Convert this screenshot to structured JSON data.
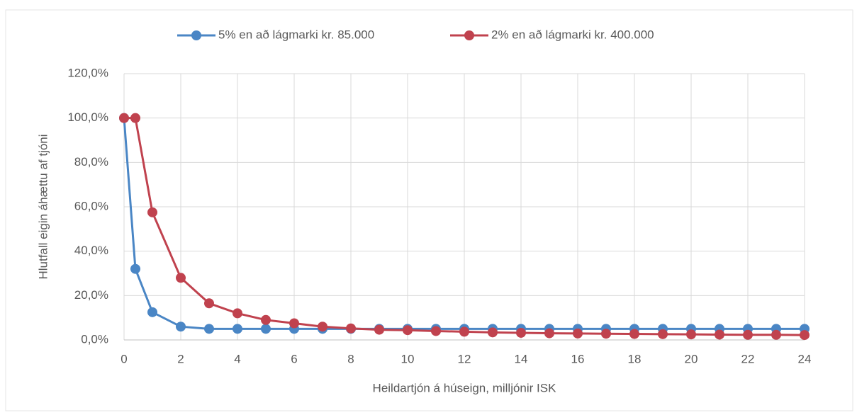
{
  "chart_data": {
    "type": "line",
    "x_label": "Heildartjón á húseign, milljónir ISK",
    "y_label": "Hlutfall eigin áhættu af tjóni",
    "x": [
      0,
      0.4,
      1,
      2,
      3,
      4,
      5,
      6,
      7,
      8,
      9,
      10,
      11,
      12,
      13,
      14,
      15,
      16,
      17,
      18,
      19,
      20,
      21,
      22,
      23,
      24
    ],
    "series": [
      {
        "name": "5% en að lágmarki kr. 85.000",
        "color": "#4a86c5",
        "values": [
          100,
          32,
          12.5,
          6,
          5,
          5,
          5,
          5,
          5,
          5,
          5,
          5,
          5,
          5,
          5,
          5,
          5,
          5,
          5,
          5,
          5,
          5,
          5,
          5,
          5,
          5
        ]
      },
      {
        "name": "2% en að lágmarki kr. 400.000",
        "color": "#c0424e",
        "values": [
          100,
          100,
          57.5,
          28,
          16.5,
          12,
          9,
          7.5,
          6,
          5.2,
          4.6,
          4.4,
          4.0,
          3.7,
          3.4,
          3.2,
          3.0,
          2.9,
          2.8,
          2.7,
          2.6,
          2.5,
          2.4,
          2.3,
          2.3,
          2.2
        ]
      }
    ],
    "xlim": [
      0,
      24
    ],
    "xticks": [
      0,
      2,
      4,
      6,
      8,
      10,
      12,
      14,
      16,
      18,
      20,
      22,
      24
    ],
    "ylim": [
      0,
      120
    ],
    "yticks": [
      {
        "value": 0,
        "label": "0,0%"
      },
      {
        "value": 20,
        "label": "20,0%"
      },
      {
        "value": 40,
        "label": "40,0%"
      },
      {
        "value": 60,
        "label": "60,0%"
      },
      {
        "value": 80,
        "label": "80,0%"
      },
      {
        "value": 100,
        "label": "100,0%"
      },
      {
        "value": 120,
        "label": "120,0%"
      }
    ],
    "grid": true,
    "legend": "top"
  }
}
